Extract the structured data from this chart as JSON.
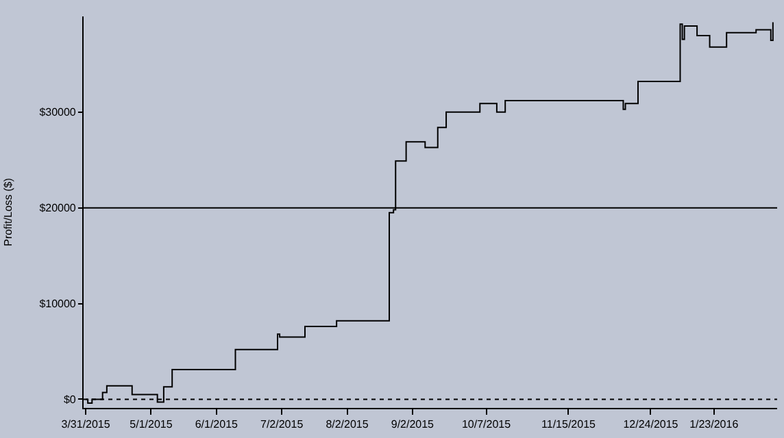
{
  "chart_data": {
    "type": "step",
    "ylabel": "Profit/Loss ($)",
    "x": [
      "2015-03-31",
      "2015-04-01",
      "2015-04-03",
      "2015-04-07",
      "2015-04-08",
      "2015-04-10",
      "2015-04-19",
      "2015-04-22",
      "2015-05-03",
      "2015-05-04",
      "2015-05-06",
      "2015-05-07",
      "2015-05-10",
      "2015-05-11",
      "2015-06-08",
      "2015-06-10",
      "2015-06-28",
      "2015-06-30",
      "2015-07-01",
      "2015-07-12",
      "2015-07-13",
      "2015-07-26",
      "2015-07-28",
      "2015-08-21",
      "2015-08-22",
      "2015-08-23",
      "2015-08-24",
      "2015-08-25",
      "2015-08-29",
      "2015-08-30",
      "2015-09-07",
      "2015-09-08",
      "2015-09-13",
      "2015-09-14",
      "2015-09-16",
      "2015-09-18",
      "2015-10-03",
      "2015-10-04",
      "2015-10-10",
      "2015-10-12",
      "2015-10-14",
      "2015-10-16",
      "2015-12-10",
      "2015-12-11",
      "2015-12-12",
      "2015-12-16",
      "2015-12-18",
      "2016-01-05",
      "2016-01-07",
      "2016-01-08",
      "2016-01-09",
      "2016-01-14",
      "2016-01-15",
      "2016-01-20",
      "2016-01-21",
      "2016-01-27",
      "2016-01-29",
      "2016-02-11",
      "2016-02-12",
      "2016-02-18",
      "2016-02-19",
      "2016-02-20"
    ],
    "series": [
      {
        "color": "#000000",
        "values": [
          0,
          -400,
          0,
          0,
          700,
          1400,
          1400,
          500,
          500,
          -300,
          -300,
          1300,
          1300,
          3100,
          3100,
          5200,
          5200,
          6800,
          6500,
          6500,
          7600,
          7600,
          8200,
          8200,
          19500,
          19500,
          19800,
          24900,
          24900,
          26900,
          26900,
          26300,
          26300,
          28400,
          28400,
          30000,
          30000,
          30900,
          30900,
          30000,
          30000,
          31200,
          31200,
          30300,
          30900,
          30900,
          33200,
          33200,
          39200,
          37600,
          39000,
          39000,
          38000,
          38000,
          36800,
          36800,
          38300,
          38300,
          38600,
          38600,
          37500,
          39400
        ]
      }
    ],
    "xlim": [
      "2015-03-30",
      "2016-02-22"
    ],
    "xticks": [
      {
        "value": "2015-03-31",
        "label": "3/31/2015"
      },
      {
        "value": "2015-05-01",
        "label": "5/1/2015"
      },
      {
        "value": "2015-06-01",
        "label": "6/1/2015"
      },
      {
        "value": "2015-07-02",
        "label": "7/2/2015"
      },
      {
        "value": "2015-08-02",
        "label": "8/2/2015"
      },
      {
        "value": "2015-09-02",
        "label": "9/2/2015"
      },
      {
        "value": "2015-10-07",
        "label": "10/7/2015"
      },
      {
        "value": "2015-11-15",
        "label": "11/15/2015"
      },
      {
        "value": "2015-12-24",
        "label": "12/24/2015"
      },
      {
        "value": "2016-01-23",
        "label": "1/23/2016"
      }
    ],
    "ylim": [
      -900,
      40000
    ],
    "yticks": [
      {
        "value": 0,
        "label": "$0"
      },
      {
        "value": 10000,
        "label": "$10000"
      },
      {
        "value": 20000,
        "label": "$20000"
      },
      {
        "value": 30000,
        "label": "$30000"
      }
    ],
    "ref_lines": [
      {
        "axis": "y",
        "value": 20000,
        "color": "#000000",
        "line_style": "solid"
      },
      {
        "axis": "y",
        "value": 0,
        "color": "#000000",
        "line_style": "dotted"
      }
    ],
    "grid": false,
    "marker": "none",
    "line_style": "solid"
  }
}
